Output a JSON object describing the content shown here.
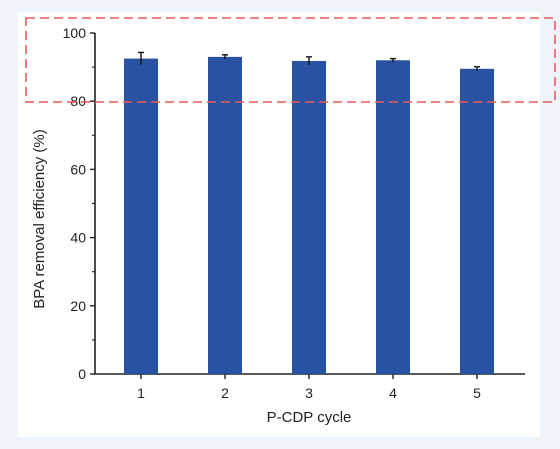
{
  "chart_data": {
    "type": "bar",
    "categories": [
      "1",
      "2",
      "3",
      "4",
      "5"
    ],
    "values": [
      92.5,
      93.0,
      91.8,
      92.0,
      89.5
    ],
    "errors": [
      1.8,
      0.6,
      1.2,
      0.5,
      0.6
    ],
    "xlabel": "P-CDP cycle",
    "ylabel": "BPA removal efficiency (%)",
    "ylim": [
      0,
      100
    ],
    "yticks": [
      0,
      20,
      40,
      60,
      80,
      100
    ],
    "bar_color": "#2a52a3",
    "grid": false,
    "legend": "none"
  },
  "overlay": {
    "style": "dashed",
    "color": "#ee5a5a"
  },
  "page": {
    "background": "#eef4fa",
    "card_background": "#ffffff"
  }
}
